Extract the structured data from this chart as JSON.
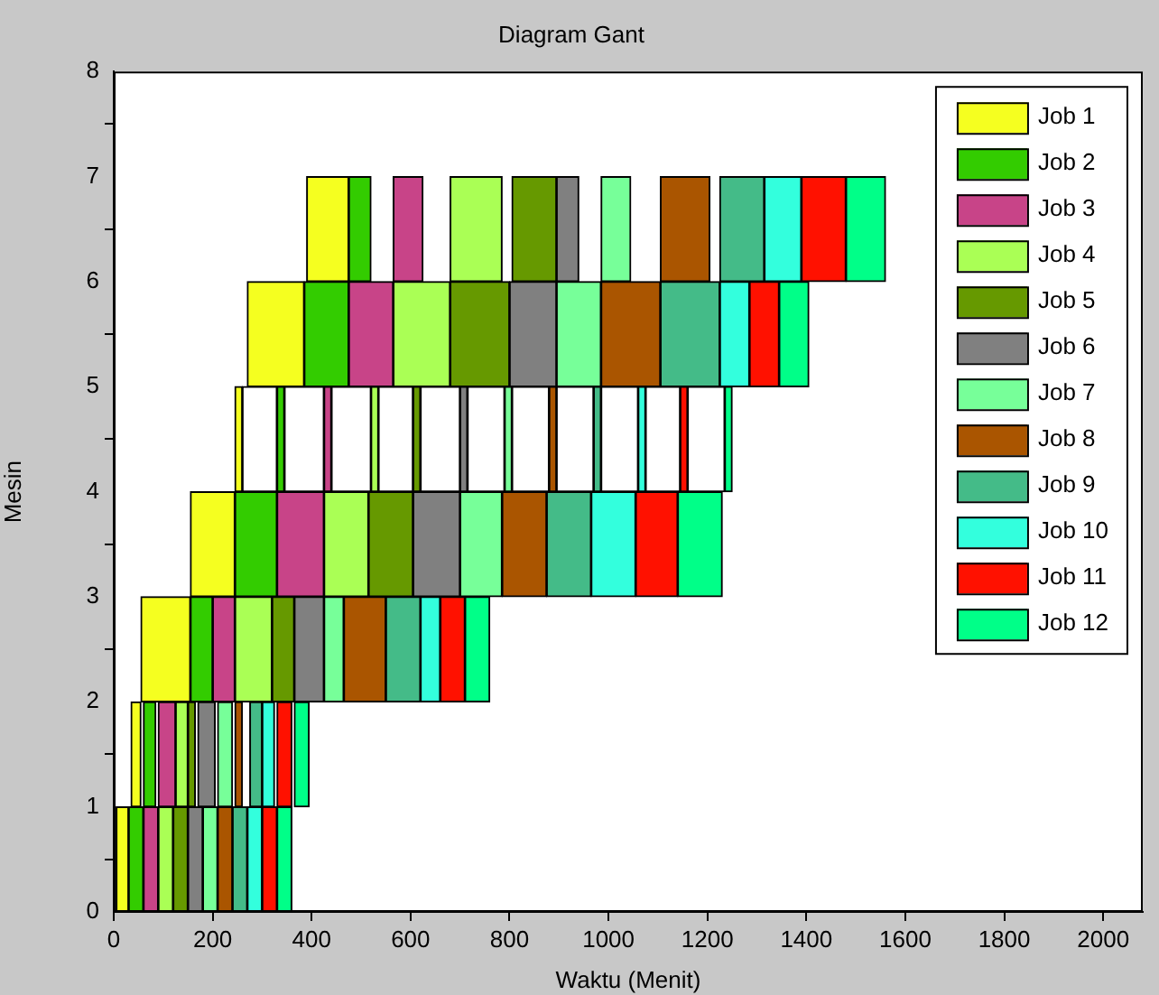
{
  "chart_data": {
    "type": "bar",
    "orientation": "horizontal",
    "title": "Diagram Gant",
    "xlabel": "Waktu (Menit)",
    "ylabel": "Mesin",
    "x": [
      0.5,
      1.5,
      2.5,
      3.5,
      4.5,
      5.5,
      6.5
    ],
    "xlim": [
      0,
      2080
    ],
    "xticks": [
      0,
      200,
      400,
      600,
      800,
      1000,
      1200,
      1400,
      1600,
      1800,
      2000
    ],
    "ylim": [
      0,
      8
    ],
    "yticks": [
      0,
      1,
      2,
      3,
      4,
      5,
      6,
      7,
      8
    ],
    "legend": "top right",
    "series": [
      {
        "name": "Job 1",
        "color": "#f5ff20",
        "base": [
          5,
          35,
          55,
          155,
          245,
          270,
          390
        ],
        "values": [
          25,
          20,
          100,
          90,
          15,
          115,
          85
        ]
      },
      {
        "name": "Job 2",
        "color": "#33cc00",
        "base": [
          30,
          60,
          155,
          245,
          330,
          385,
          475
        ],
        "values": [
          30,
          25,
          45,
          85,
          15,
          90,
          45
        ]
      },
      {
        "name": "Job 3",
        "color": "#c84488",
        "base": [
          60,
          90,
          200,
          330,
          425,
          475,
          565
        ],
        "values": [
          30,
          35,
          45,
          95,
          15,
          90,
          60
        ]
      },
      {
        "name": "Job 4",
        "color": "#aaff55",
        "base": [
          90,
          125,
          245,
          425,
          520,
          565,
          680
        ],
        "values": [
          30,
          25,
          75,
          90,
          15,
          115,
          105
        ]
      },
      {
        "name": "Job 5",
        "color": "#669900",
        "base": [
          120,
          150,
          320,
          515,
          605,
          680,
          805
        ],
        "values": [
          30,
          15,
          45,
          90,
          15,
          120,
          90
        ]
      },
      {
        "name": "Job 6",
        "color": "#808080",
        "base": [
          150,
          170,
          365,
          605,
          700,
          800,
          895
        ],
        "values": [
          30,
          35,
          60,
          95,
          15,
          95,
          45
        ]
      },
      {
        "name": "Job 7",
        "color": "#77ff99",
        "base": [
          180,
          210,
          425,
          700,
          790,
          895,
          985
        ],
        "values": [
          30,
          30,
          40,
          85,
          15,
          90,
          60
        ]
      },
      {
        "name": "Job 8",
        "color": "#aa5500",
        "base": [
          210,
          245,
          465,
          785,
          880,
          985,
          1105
        ],
        "values": [
          30,
          15,
          85,
          90,
          15,
          120,
          100
        ]
      },
      {
        "name": "Job 9",
        "color": "#44bb88",
        "base": [
          240,
          275,
          550,
          875,
          970,
          1105,
          1225
        ],
        "values": [
          30,
          25,
          70,
          90,
          15,
          120,
          90
        ]
      },
      {
        "name": "Job 10",
        "color": "#33ffdd",
        "base": [
          270,
          300,
          620,
          965,
          1060,
          1225,
          1315
        ],
        "values": [
          30,
          25,
          40,
          90,
          15,
          60,
          75
        ]
      },
      {
        "name": "Job 11",
        "color": "#ff1100",
        "base": [
          300,
          330,
          660,
          1055,
          1145,
          1285,
          1390
        ],
        "values": [
          30,
          30,
          50,
          85,
          15,
          60,
          90
        ]
      },
      {
        "name": "Job 12",
        "color": "#00ff88",
        "base": [
          330,
          365,
          710,
          1140,
          1235,
          1345,
          1480
        ],
        "values": [
          30,
          30,
          50,
          90,
          15,
          60,
          80
        ]
      },
      {
        "color": "#ffffff",
        "base": [
          null,
          null,
          null,
          null,
          260,
          null,
          null
        ],
        "values": [
          null,
          null,
          null,
          null,
          70,
          null,
          null
        ]
      },
      {
        "color": "#ffffff",
        "base": [
          null,
          null,
          null,
          null,
          345,
          null,
          null
        ],
        "values": [
          null,
          null,
          null,
          null,
          80,
          null,
          null
        ]
      },
      {
        "color": "#ffffff",
        "base": [
          null,
          null,
          null,
          null,
          440,
          null,
          null
        ],
        "values": [
          null,
          null,
          null,
          null,
          80,
          null,
          null
        ]
      },
      {
        "color": "#ffffff",
        "base": [
          null,
          null,
          null,
          null,
          535,
          null,
          null
        ],
        "values": [
          null,
          null,
          null,
          null,
          70,
          null,
          null
        ]
      },
      {
        "color": "#ffffff",
        "base": [
          null,
          null,
          null,
          null,
          620,
          null,
          null
        ],
        "values": [
          null,
          null,
          null,
          null,
          80,
          null,
          null
        ]
      },
      {
        "color": "#ffffff",
        "base": [
          null,
          null,
          null,
          null,
          715,
          null,
          null
        ],
        "values": [
          null,
          null,
          null,
          null,
          75,
          null,
          null
        ]
      },
      {
        "color": "#ffffff",
        "base": [
          null,
          null,
          null,
          null,
          805,
          null,
          null
        ],
        "values": [
          null,
          null,
          null,
          null,
          75,
          null,
          null
        ]
      },
      {
        "color": "#ffffff",
        "base": [
          null,
          null,
          null,
          null,
          895,
          null,
          null
        ],
        "values": [
          null,
          null,
          null,
          null,
          75,
          null,
          null
        ]
      },
      {
        "color": "#ffffff",
        "base": [
          null,
          null,
          null,
          null,
          985,
          null,
          null
        ],
        "values": [
          null,
          null,
          null,
          null,
          75,
          null,
          null
        ]
      },
      {
        "color": "#ffffff",
        "base": [
          null,
          null,
          null,
          null,
          1075,
          null,
          null
        ],
        "values": [
          null,
          null,
          null,
          null,
          70,
          null,
          null
        ]
      },
      {
        "color": "#ffffff",
        "base": [
          null,
          null,
          null,
          null,
          1160,
          null,
          null
        ],
        "values": [
          null,
          null,
          null,
          null,
          75,
          null,
          null
        ]
      }
    ]
  }
}
